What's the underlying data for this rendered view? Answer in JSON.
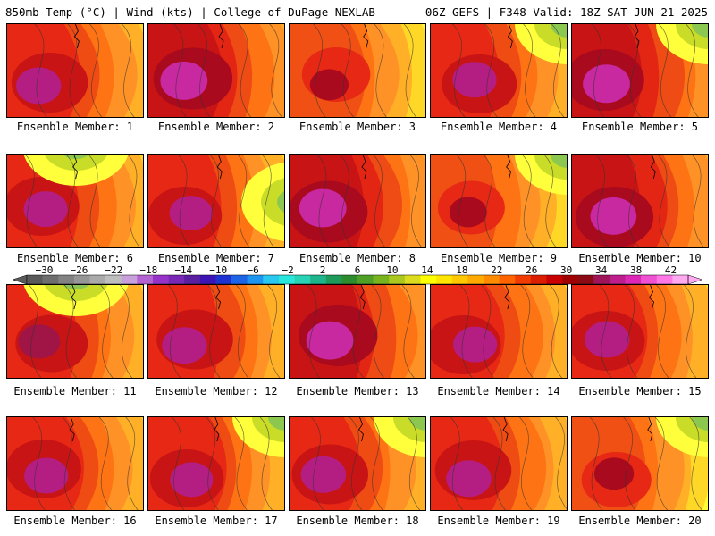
{
  "header": {
    "left_title": "850mb Temp (°C) | Wind (kts) | College of DuPage NEXLAB",
    "right_title": "06Z GEFS | F348 Valid: 18Z SAT JUN 21 2025"
  },
  "panels": [
    {
      "label": "Ensemble Member: 1",
      "warmth": 0.85,
      "cool": "none"
    },
    {
      "label": "Ensemble Member: 2",
      "warmth": 0.95,
      "cool": "none"
    },
    {
      "label": "Ensemble Member: 3",
      "warmth": 0.55,
      "cool": "none"
    },
    {
      "label": "Ensemble Member: 4",
      "warmth": 0.8,
      "cool": "top-right"
    },
    {
      "label": "Ensemble Member: 5",
      "warmth": 0.95,
      "cool": "top-right"
    },
    {
      "label": "Ensemble Member: 6",
      "warmth": 0.8,
      "cool": "top"
    },
    {
      "label": "Ensemble Member: 7",
      "warmth": 0.75,
      "cool": "right"
    },
    {
      "label": "Ensemble Member: 8",
      "warmth": 0.95,
      "cool": "none"
    },
    {
      "label": "Ensemble Member: 9",
      "warmth": 0.5,
      "cool": "top-right"
    },
    {
      "label": "Ensemble Member: 10",
      "warmth": 0.9,
      "cool": "none"
    },
    {
      "label": "Ensemble Member: 11",
      "warmth": 0.7,
      "cool": "top"
    },
    {
      "label": "Ensemble Member: 12",
      "warmth": 0.85,
      "cool": "none"
    },
    {
      "label": "Ensemble Member: 13",
      "warmth": 0.95,
      "cool": "none"
    },
    {
      "label": "Ensemble Member: 14",
      "warmth": 0.8,
      "cool": "none"
    },
    {
      "label": "Ensemble Member: 15",
      "warmth": 0.85,
      "cool": "none"
    },
    {
      "label": "Ensemble Member: 16",
      "warmth": 0.8,
      "cool": "none"
    },
    {
      "label": "Ensemble Member: 17",
      "warmth": 0.75,
      "cool": "top-right"
    },
    {
      "label": "Ensemble Member: 18",
      "warmth": 0.85,
      "cool": "top-right"
    },
    {
      "label": "Ensemble Member: 19",
      "warmth": 0.85,
      "cool": "none"
    },
    {
      "label": "Ensemble Member: 20",
      "warmth": 0.6,
      "cool": "top-right"
    }
  ],
  "colorbar": {
    "labels": [
      "−30",
      "−26",
      "−22",
      "−18",
      "−14",
      "−10",
      "−6",
      "−2",
      "2",
      "6",
      "10",
      "14",
      "18",
      "22",
      "26",
      "30",
      "34",
      "38",
      "42"
    ],
    "colors": [
      "#5a5a5a",
      "#6e6e6e",
      "#828282",
      "#969696",
      "#aaaaaa",
      "#bebebe",
      "#c8a0dc",
      "#b464d2",
      "#9632c8",
      "#7828b4",
      "#5a1ea0",
      "#3c14b4",
      "#1e32d2",
      "#1e64e6",
      "#1e96f0",
      "#28c8f0",
      "#28e6dc",
      "#28d2b4",
      "#1eb48c",
      "#1e9b5a",
      "#2d8c2d",
      "#50a028",
      "#78b41e",
      "#aac81e",
      "#dcdc1e",
      "#ffff00",
      "#ffe600",
      "#ffc800",
      "#ffaa00",
      "#ff8c00",
      "#ff6400",
      "#f03c00",
      "#dc1e00",
      "#c80000",
      "#a00000",
      "#8c0a14",
      "#a0145a",
      "#be1e8c",
      "#dc28b4",
      "#f050d2",
      "#ff78e6",
      "#ffaaf0"
    ]
  }
}
